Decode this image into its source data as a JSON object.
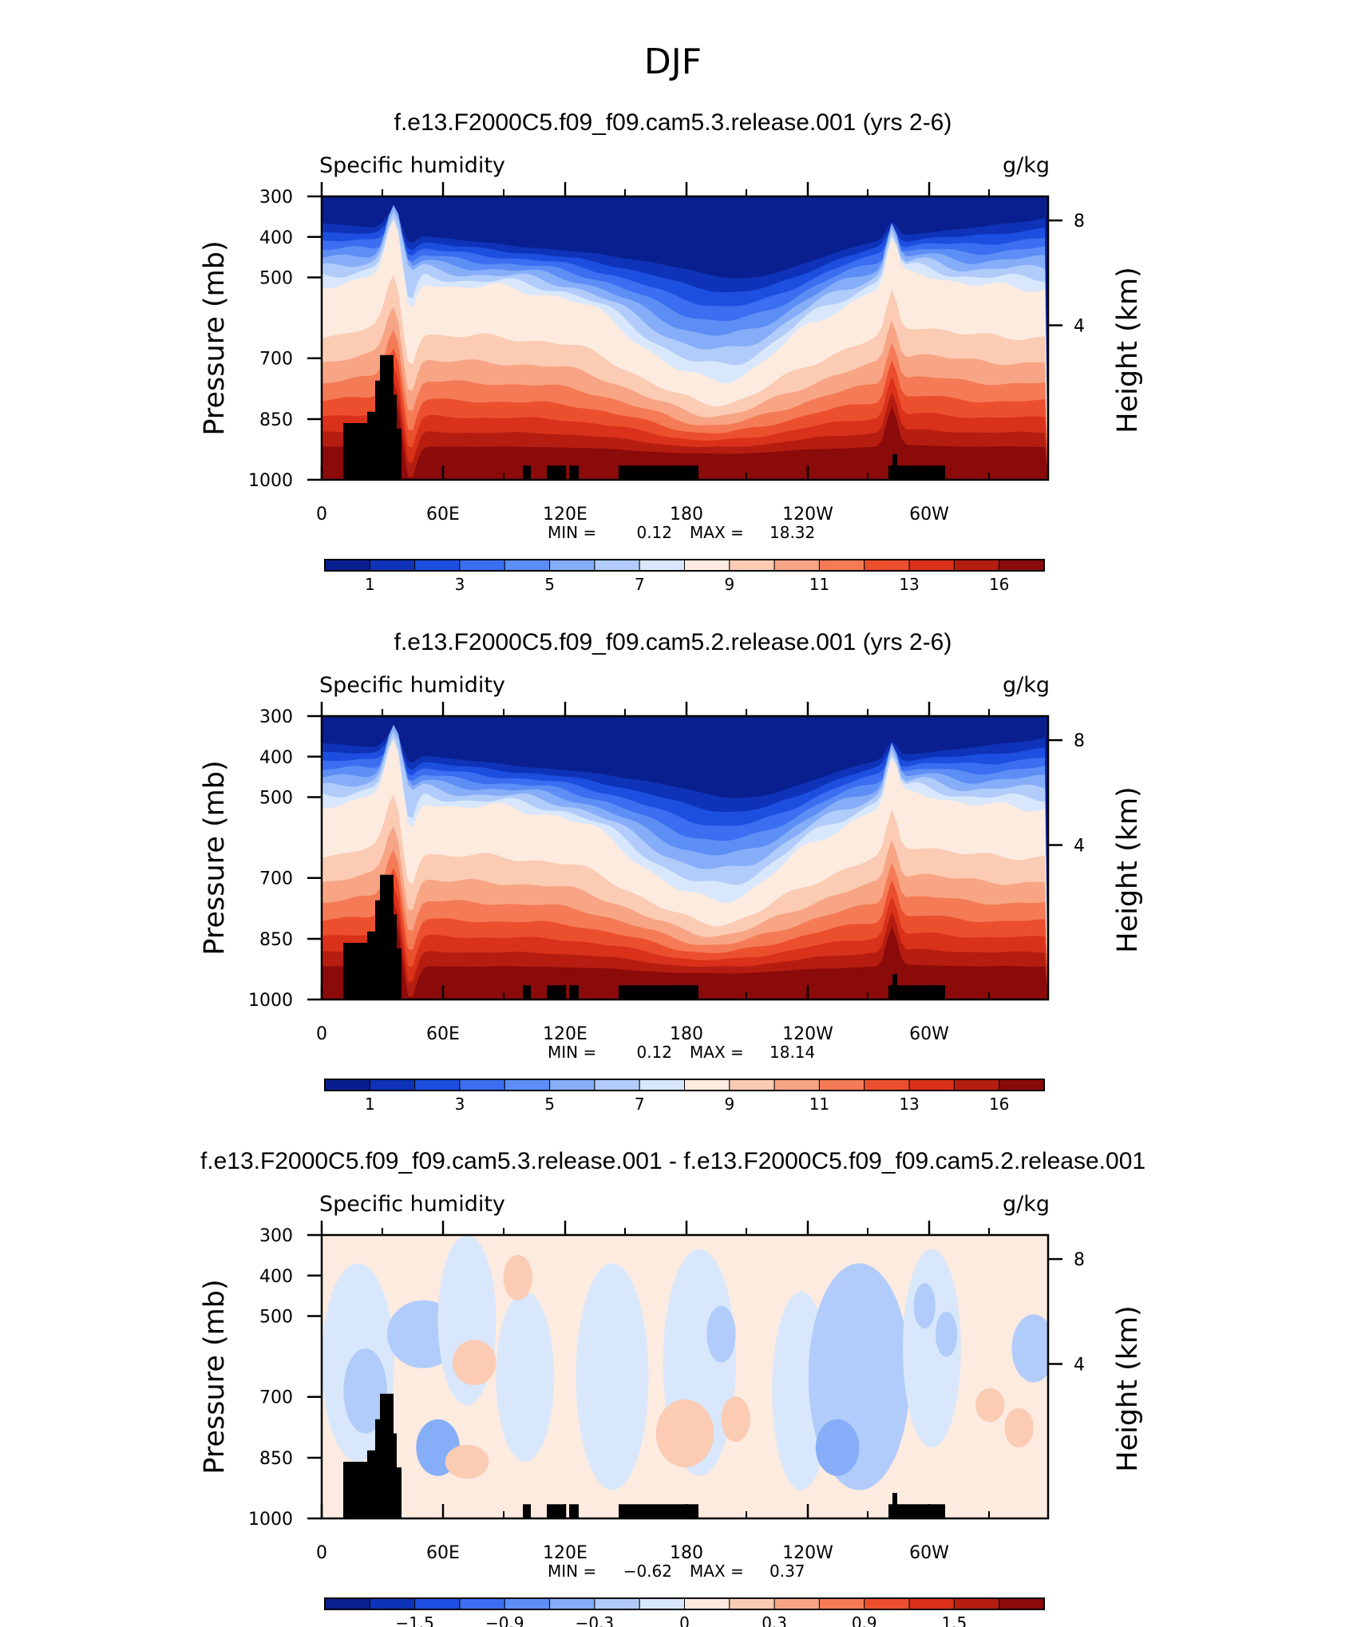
{
  "page_title": "DJF",
  "chart_data": [
    {
      "type": "heatmap",
      "title": "f.e13.F2000C5.f09_f09.cam5.3.release.001 (yrs 2-6)",
      "left_label": "Specific humidity",
      "right_label": "g/kg",
      "ylabel": "Pressure (mb)",
      "ylabel_right": "Height (km)",
      "x_ticks": [
        "0",
        "60E",
        "120E",
        "180",
        "120W",
        "60W"
      ],
      "y_ticks": [
        "300",
        "400",
        "500",
        "700",
        "850",
        "1000"
      ],
      "y_ticks_right": [
        "8",
        "4"
      ],
      "min_label": "MIN =",
      "min_value": "0.12",
      "max_label": "MAX =",
      "max_value": "18.32",
      "colorbar_labels": [
        "1",
        "3",
        "5",
        "7",
        "9",
        "11",
        "13",
        "16"
      ],
      "colorbar_colors": [
        "#0a1f8f",
        "#0e33b8",
        "#1c4fe0",
        "#3b6ef0",
        "#5d8ef5",
        "#86adf8",
        "#b1ccfa",
        "#d8e7fb",
        "#fdebe0",
        "#fbcbb4",
        "#f8a585",
        "#f47b56",
        "#ec4f2d",
        "#d9311a",
        "#b51d10",
        "#8b0a0a"
      ]
    },
    {
      "type": "heatmap",
      "title": "f.e13.F2000C5.f09_f09.cam5.2.release.001 (yrs 2-6)",
      "left_label": "Specific humidity",
      "right_label": "g/kg",
      "ylabel": "Pressure (mb)",
      "ylabel_right": "Height (km)",
      "x_ticks": [
        "0",
        "60E",
        "120E",
        "180",
        "120W",
        "60W"
      ],
      "y_ticks": [
        "300",
        "400",
        "500",
        "700",
        "850",
        "1000"
      ],
      "y_ticks_right": [
        "8",
        "4"
      ],
      "min_label": "MIN =",
      "min_value": "0.12",
      "max_label": "MAX =",
      "max_value": "18.14",
      "colorbar_labels": [
        "1",
        "3",
        "5",
        "7",
        "9",
        "11",
        "13",
        "16"
      ],
      "colorbar_colors": [
        "#0a1f8f",
        "#0e33b8",
        "#1c4fe0",
        "#3b6ef0",
        "#5d8ef5",
        "#86adf8",
        "#b1ccfa",
        "#d8e7fb",
        "#fdebe0",
        "#fbcbb4",
        "#f8a585",
        "#f47b56",
        "#ec4f2d",
        "#d9311a",
        "#b51d10",
        "#8b0a0a"
      ]
    },
    {
      "type": "heatmap",
      "title": "f.e13.F2000C5.f09_f09.cam5.3.release.001 - f.e13.F2000C5.f09_f09.cam5.2.release.001",
      "left_label": "Specific humidity",
      "right_label": "g/kg",
      "ylabel": "Pressure (mb)",
      "ylabel_right": "Height (km)",
      "x_ticks": [
        "0",
        "60E",
        "120E",
        "180",
        "120W",
        "60W"
      ],
      "y_ticks": [
        "300",
        "400",
        "500",
        "700",
        "850",
        "1000"
      ],
      "y_ticks_right": [
        "8",
        "4"
      ],
      "min_label": "MIN =",
      "min_value": "−0.62",
      "max_label": "MAX =",
      "max_value": "0.37",
      "colorbar_labels": [
        "−1.5",
        "−0.9",
        "−0.3",
        "0",
        "0.3",
        "0.9",
        "1.5"
      ],
      "colorbar_colors": [
        "#0a1f8f",
        "#0e33b8",
        "#1c4fe0",
        "#3b6ef0",
        "#5d8ef5",
        "#86adf8",
        "#b1ccfa",
        "#d8e7fb",
        "#fdebe0",
        "#fbcbb4",
        "#f8a585",
        "#f47b56",
        "#ec4f2d",
        "#d9311a",
        "#b51d10",
        "#8b0a0a"
      ]
    }
  ]
}
